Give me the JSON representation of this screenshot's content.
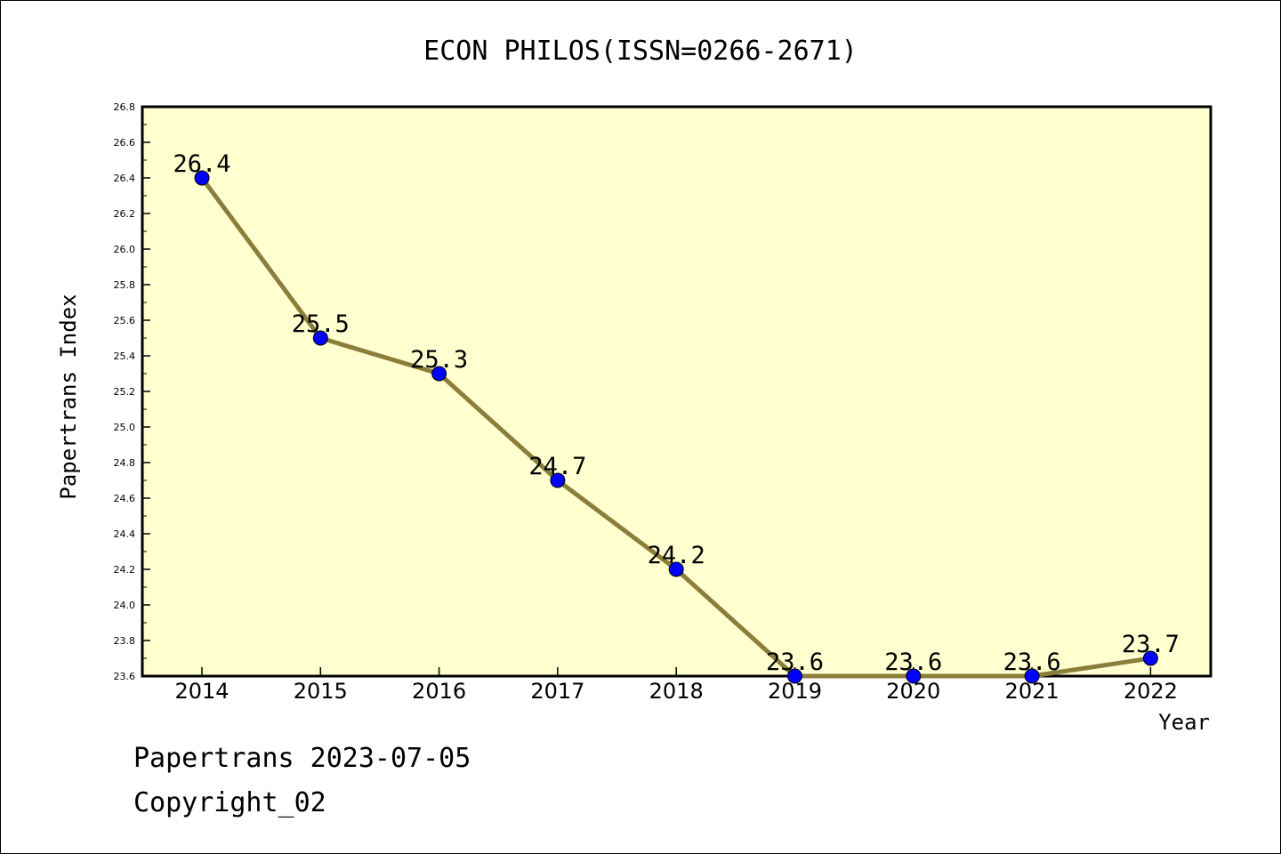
{
  "chart_data": {
    "type": "line",
    "title": "ECON PHILOS(ISSN=0266-2671)",
    "xlabel": "Year",
    "ylabel": "Papertrans Index",
    "categories": [
      "2014",
      "2015",
      "2016",
      "2017",
      "2018",
      "2019",
      "2020",
      "2021",
      "2022"
    ],
    "values": [
      26.4,
      25.5,
      25.3,
      24.7,
      24.2,
      23.6,
      23.6,
      23.6,
      23.7
    ],
    "data_labels": [
      "26.4",
      "25.5",
      "25.3",
      "24.7",
      "24.2",
      "23.6",
      "23.6",
      "23.6",
      "23.7"
    ],
    "ylim": [
      23.6,
      26.8
    ],
    "yticks": [
      "23.6",
      "23.8",
      "24.0",
      "24.2",
      "24.4",
      "24.6",
      "24.8",
      "25.0",
      "25.2",
      "25.4",
      "25.6",
      "25.8",
      "26.0",
      "26.2",
      "26.4",
      "26.6",
      "26.8"
    ],
    "grid": false,
    "colors": {
      "plot_background": "#ffffd0",
      "line": "#8b7d3a",
      "marker": "#0000ff"
    }
  },
  "footer": {
    "line1": "Papertrans 2023-07-05",
    "line2": "Copyright_02"
  }
}
